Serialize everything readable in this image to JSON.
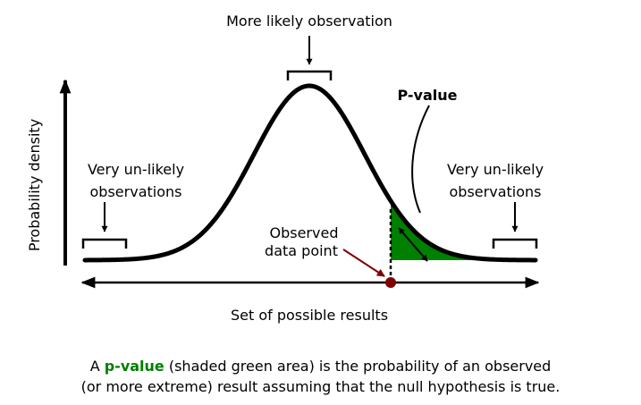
{
  "labels": {
    "top": "More likely observation",
    "left_line1": "Very un-likely",
    "left_line2": "observations",
    "right_line1": "Very un-likely",
    "right_line2": "observations",
    "pvalue": "P-value",
    "observed_line1": "Observed",
    "observed_line2": "data point",
    "y_axis": "Probability density",
    "x_axis": "Set of possible results"
  },
  "caption": {
    "part1": "A ",
    "highlight": "p-value",
    "part2": " (shaded green area) is the probability of an observed",
    "line2": "(or more extreme) result assuming that the null hypothesis is true."
  },
  "colors": {
    "pvalue_green": "#008000",
    "observed_red": "#800000",
    "curve": "#000000"
  }
}
